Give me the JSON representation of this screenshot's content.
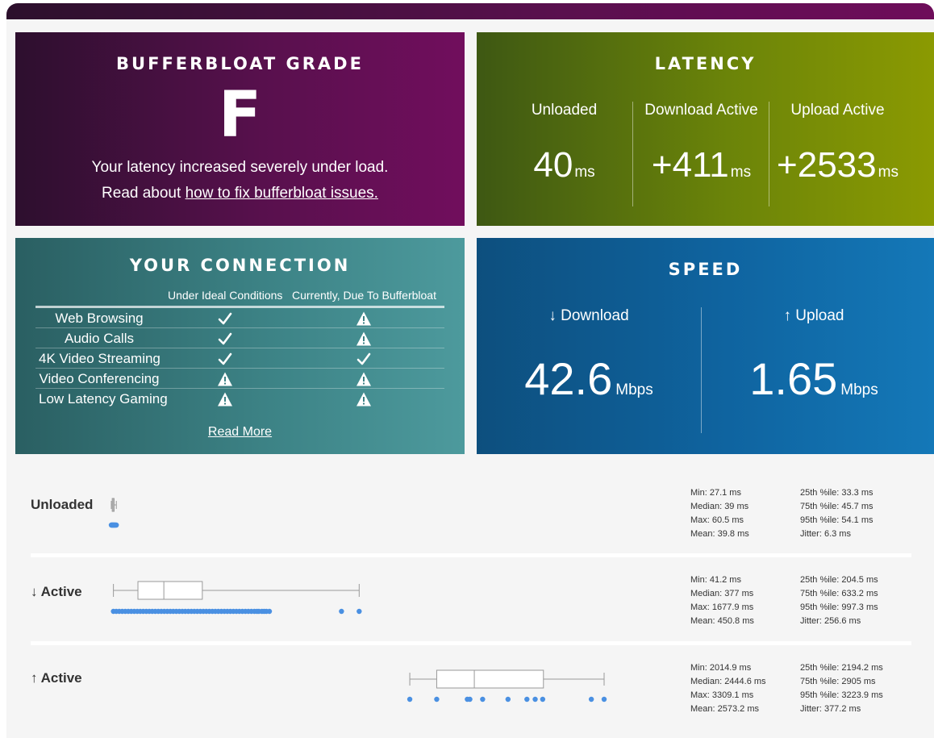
{
  "grade": {
    "title": "BUFFERBLOAT GRADE",
    "letter": "F",
    "message": "Your latency increased severely under load.",
    "read_prefix": "Read about ",
    "link": "how to fix bufferbloat issues."
  },
  "latency": {
    "title": "LATENCY",
    "columns": [
      {
        "label": "Unloaded",
        "value": "40",
        "unit": "ms"
      },
      {
        "label": "Download Active",
        "value": "+411",
        "unit": "ms"
      },
      {
        "label": "Upload Active",
        "value": "+2533",
        "unit": "ms"
      }
    ]
  },
  "connection": {
    "title": "YOUR CONNECTION",
    "col_ideal": "Under Ideal Conditions",
    "col_current": "Currently, Due To Bufferbloat",
    "rows": [
      {
        "name": "Web Browsing",
        "ideal": "check-icon",
        "current": "warning-icon"
      },
      {
        "name": "Audio Calls",
        "ideal": "check-icon",
        "current": "warning-icon"
      },
      {
        "name": "4K Video Streaming",
        "ideal": "check-icon",
        "current": "check-icon"
      },
      {
        "name": "Video Conferencing",
        "ideal": "warning-icon",
        "current": "warning-icon"
      },
      {
        "name": "Low Latency Gaming",
        "ideal": "warning-icon",
        "current": "warning-icon"
      }
    ],
    "read_more": "Read More"
  },
  "speed": {
    "title": "SPEED",
    "download": {
      "label": "↓ Download",
      "value": "42.6",
      "unit": "Mbps"
    },
    "upload": {
      "label": "↑ Upload",
      "value": "1.65",
      "unit": "Mbps"
    }
  },
  "boxplots": [
    {
      "label": "Unloaded",
      "stats_left": [
        "Min: 27.1 ms",
        "Median: 39 ms",
        "Max: 60.5 ms",
        "Mean: 39.8 ms"
      ],
      "stats_right": [
        "25th %ile: 33.3 ms",
        "75th %ile: 45.7 ms",
        "95th %ile: 54.1 ms",
        "Jitter: 6.3 ms"
      ],
      "min": 27.1,
      "q1": 33.3,
      "median": 39,
      "q3": 45.7,
      "max": 60.5,
      "points": [
        27.1,
        30,
        33,
        36,
        39,
        42,
        45,
        48,
        52,
        55,
        60.5
      ]
    },
    {
      "label": "↓ Active",
      "stats_left": [
        "Min: 41.2 ms",
        "Median: 377 ms",
        "Max: 1677.9 ms",
        "Mean: 450.8 ms"
      ],
      "stats_right": [
        "25th %ile: 204.5 ms",
        "75th %ile: 633.2 ms",
        "95th %ile: 997.3 ms",
        "Jitter: 256.6 ms"
      ],
      "min": 41.2,
      "q1": 204.5,
      "median": 377,
      "q3": 633.2,
      "max": 1677.9,
      "points": [
        41.2,
        60,
        80,
        100,
        120,
        140,
        160,
        180,
        200,
        220,
        240,
        260,
        280,
        300,
        320,
        340,
        360,
        380,
        400,
        420,
        440,
        460,
        480,
        500,
        520,
        540,
        560,
        580,
        600,
        620,
        640,
        660,
        680,
        700,
        720,
        740,
        760,
        780,
        800,
        820,
        840,
        860,
        880,
        900,
        920,
        940,
        960,
        980,
        997.3,
        1010,
        1030,
        1045,
        1060,
        1080,
        1560,
        1677.9
      ]
    },
    {
      "label": "↑ Active",
      "stats_left": [
        "Min: 2014.9 ms",
        "Median: 2444.6 ms",
        "Max: 3309.1 ms",
        "Mean: 2573.2 ms"
      ],
      "stats_right": [
        "25th %ile: 2194.2 ms",
        "75th %ile: 2905 ms",
        "95th %ile: 3223.9 ms",
        "Jitter: 377.2 ms"
      ],
      "min": 2014.9,
      "q1": 2194.2,
      "median": 2444.6,
      "q3": 2905,
      "max": 3309.1,
      "points": [
        2014.9,
        2194.2,
        2398,
        2415,
        2500,
        2669,
        2795,
        2850,
        2900,
        3223.9,
        3309.1
      ]
    }
  ],
  "colors": {
    "point": "#4a90e2",
    "box": "#999999"
  }
}
